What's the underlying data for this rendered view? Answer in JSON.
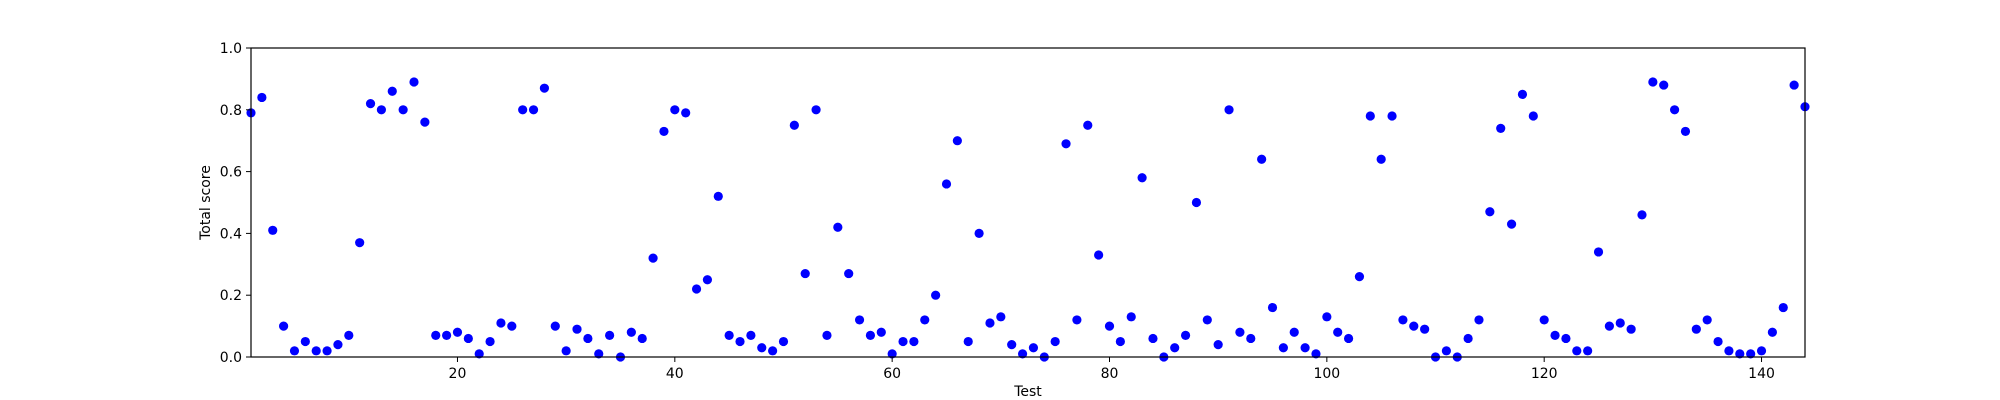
{
  "chart_data": {
    "type": "scatter",
    "title": "",
    "xlabel": "Test",
    "ylabel": "Total score",
    "xlim": [
      1,
      144
    ],
    "ylim": [
      0.0,
      1.0
    ],
    "xticks": [
      20,
      40,
      60,
      80,
      100,
      120,
      140
    ],
    "xtick_labels": [
      "20",
      "40",
      "60",
      "80",
      "100",
      "120",
      "140"
    ],
    "yticks": [
      0.0,
      0.2,
      0.4,
      0.6,
      0.8,
      1.0
    ],
    "ytick_labels": [
      "0.0",
      "0.2",
      "0.4",
      "0.6",
      "0.8",
      "1.0"
    ],
    "grid": false,
    "legend": "none",
    "marker_color": "#0000ff",
    "series": [
      {
        "x": [
          1,
          2,
          3,
          4,
          5,
          6,
          7,
          8,
          9,
          10,
          11,
          12,
          13,
          14,
          15,
          16,
          17,
          18,
          19,
          20,
          21,
          22,
          23,
          24,
          25,
          26,
          27,
          28,
          29,
          30,
          31,
          32,
          33,
          34,
          35,
          36,
          37,
          38,
          39,
          40,
          41,
          42,
          43,
          44,
          45,
          46,
          47,
          48,
          49,
          50,
          51,
          52,
          53,
          54,
          55,
          56,
          57,
          58,
          59,
          60,
          61,
          62,
          63,
          64,
          65,
          66,
          67,
          68,
          69,
          70,
          71,
          72,
          73,
          74,
          75,
          76,
          77,
          78,
          79,
          80,
          81,
          82,
          83,
          84,
          85,
          86,
          87,
          88,
          89,
          90,
          91,
          92,
          93,
          94,
          95,
          96,
          97,
          98,
          99,
          100,
          101,
          102,
          103,
          104,
          105,
          106,
          107,
          108,
          109,
          110,
          111,
          112,
          113,
          114,
          115,
          116,
          117,
          118,
          119,
          120,
          121,
          122,
          123,
          124,
          125,
          126,
          127,
          128,
          129,
          130,
          131,
          132,
          133,
          134,
          135,
          136,
          137,
          138,
          139,
          140,
          141,
          142,
          143,
          144
        ],
        "y": [
          0.79,
          0.84,
          0.41,
          0.1,
          0.02,
          0.05,
          0.02,
          0.02,
          0.04,
          0.07,
          0.37,
          0.82,
          0.8,
          0.86,
          0.8,
          0.89,
          0.76,
          0.07,
          0.07,
          0.08,
          0.06,
          0.01,
          0.05,
          0.11,
          0.1,
          0.8,
          0.8,
          0.87,
          0.1,
          0.02,
          0.09,
          0.06,
          0.01,
          0.07,
          0.0,
          0.08,
          0.06,
          0.32,
          0.73,
          0.8,
          0.79,
          0.22,
          0.25,
          0.52,
          0.07,
          0.05,
          0.07,
          0.03,
          0.02,
          0.05,
          0.75,
          0.27,
          0.8,
          0.07,
          0.42,
          0.27,
          0.12,
          0.07,
          0.08,
          0.01,
          0.05,
          0.05,
          0.12,
          0.2,
          0.56,
          0.7,
          0.05,
          0.4,
          0.11,
          0.13,
          0.04,
          0.01,
          0.03,
          0.0,
          0.05,
          0.69,
          0.12,
          0.75,
          0.33,
          0.1,
          0.05,
          0.13,
          0.58,
          0.06,
          0.0,
          0.03,
          0.07,
          0.5,
          0.12,
          0.04,
          0.8,
          0.08,
          0.06,
          0.64,
          0.16,
          0.03,
          0.08,
          0.03,
          0.01,
          0.13,
          0.08,
          0.06,
          0.26,
          0.78,
          0.64,
          0.78,
          0.12,
          0.1,
          0.09,
          0.0,
          0.02,
          0.0,
          0.06,
          0.12,
          0.47,
          0.74,
          0.43,
          0.85,
          0.78,
          0.12,
          0.07,
          0.06,
          0.02,
          0.02,
          0.34,
          0.1,
          0.11,
          0.09,
          0.46,
          0.89,
          0.88,
          0.8,
          0.73,
          0.09,
          0.12,
          0.05,
          0.02,
          0.01,
          0.01,
          0.02,
          0.08,
          0.16,
          0.88,
          0.81
        ]
      }
    ]
  }
}
